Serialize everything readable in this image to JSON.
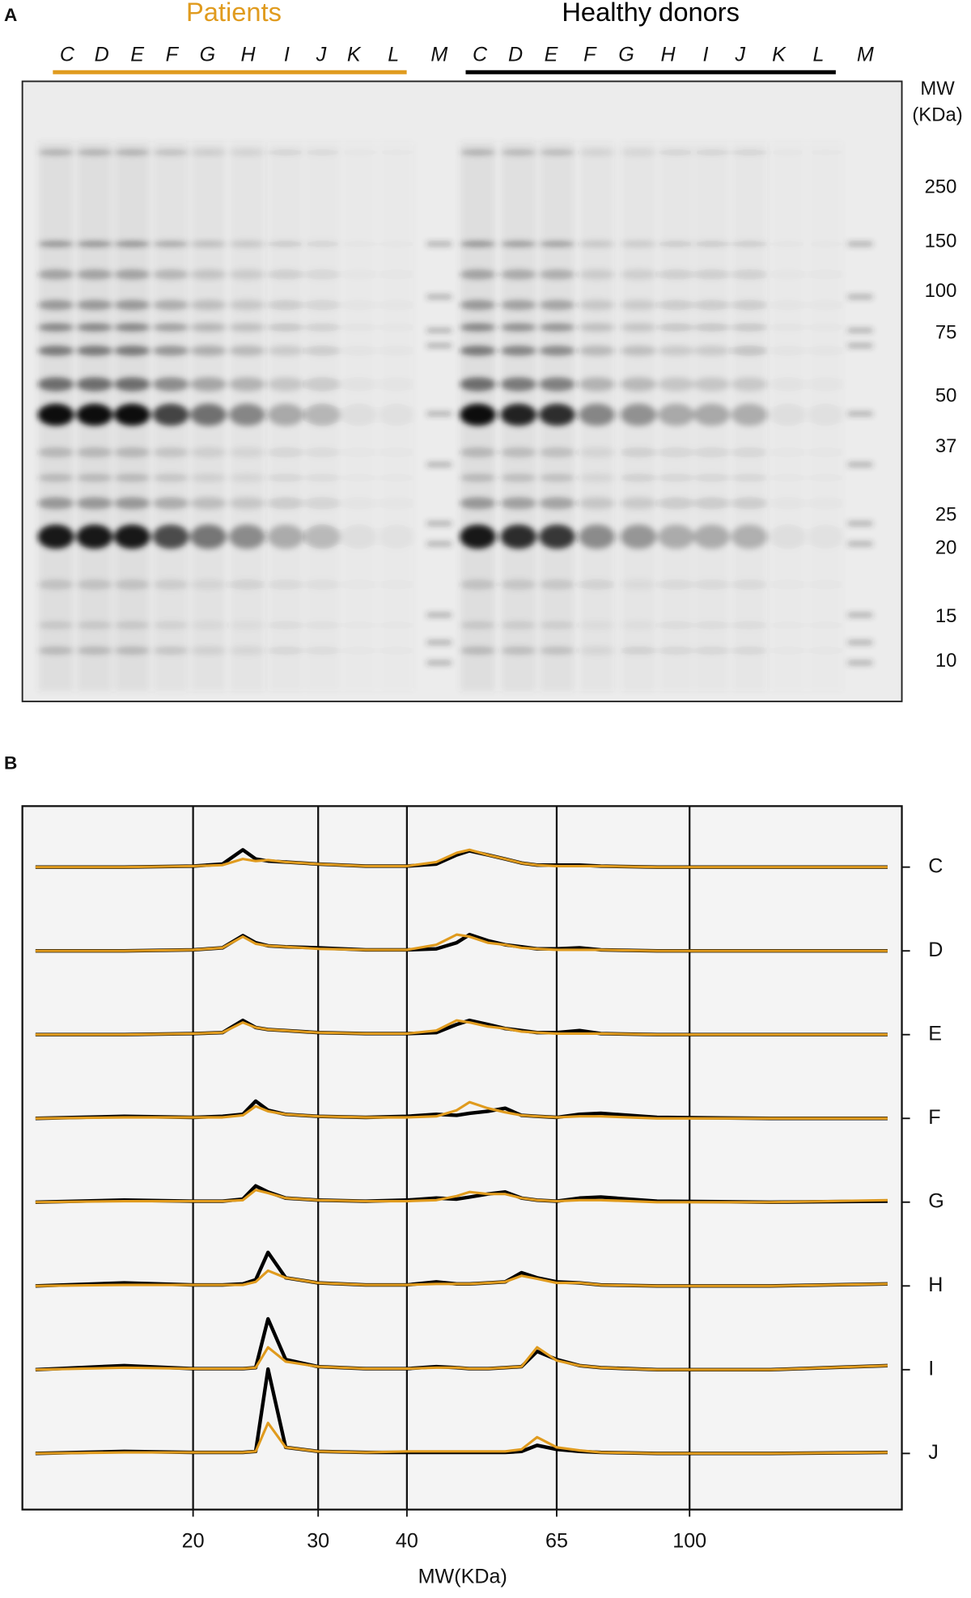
{
  "panel_a": {
    "label": "A",
    "groups": [
      {
        "name": "Patients",
        "color": "#e09b1e"
      },
      {
        "name": "Healthy donors",
        "color": "#000000"
      }
    ],
    "lanes": [
      "C",
      "D",
      "E",
      "F",
      "G",
      "H",
      "I",
      "J",
      "K",
      "L",
      "M",
      "C",
      "D",
      "E",
      "F",
      "G",
      "H",
      "I",
      "J",
      "K",
      "L",
      "M"
    ],
    "mw_title": [
      "MW",
      "(KDa)"
    ],
    "mw_markers": [
      250,
      150,
      100,
      75,
      50,
      37,
      25,
      20,
      15,
      10
    ]
  },
  "chart_data": {
    "type": "line",
    "panel_label": "B",
    "xlabel": "MW(KDa)",
    "xscale": "log",
    "xlim": [
      11.5,
      199
    ],
    "xticks": [
      20,
      30,
      40,
      65,
      100
    ],
    "grid": true,
    "x": [
      12,
      16,
      20,
      22,
      23.5,
      24.5,
      25.5,
      27,
      30,
      35,
      40,
      44,
      47,
      49,
      52,
      55,
      58,
      61,
      65,
      70,
      75,
      90,
      130,
      190
    ],
    "lanes": [
      {
        "name": "C",
        "series": [
          {
            "color": "#000000",
            "values": [
              0,
              0,
              1,
              3,
              17,
              8,
              6,
              5,
              3,
              1,
              1,
              3,
              12,
              16,
              12,
              8,
              4,
              2,
              2,
              2,
              1,
              0,
              0,
              0
            ]
          },
          {
            "color": "#e09b1e",
            "values": [
              0,
              0,
              1,
              2,
              8,
              6,
              7,
              5,
              3,
              1,
              1,
              5,
              14,
              17,
              12,
              8,
              4,
              2,
              1,
              1,
              1,
              0,
              0,
              0
            ]
          }
        ]
      },
      {
        "name": "D",
        "series": [
          {
            "color": "#000000",
            "values": [
              0,
              0,
              1,
              3,
              15,
              8,
              5,
              4,
              3,
              1,
              1,
              2,
              8,
              16,
              10,
              6,
              4,
              2,
              2,
              3,
              1,
              0,
              0,
              0
            ]
          },
          {
            "color": "#e09b1e",
            "values": [
              0,
              0,
              1,
              3,
              14,
              7,
              5,
              4,
              2,
              1,
              1,
              6,
              16,
              14,
              8,
              6,
              3,
              2,
              1,
              1,
              1,
              0,
              0,
              0
            ]
          }
        ]
      },
      {
        "name": "E",
        "series": [
          {
            "color": "#000000",
            "values": [
              0,
              0,
              1,
              2,
              14,
              7,
              5,
              4,
              2,
              1,
              1,
              2,
              10,
              14,
              10,
              6,
              4,
              2,
              2,
              4,
              1,
              0,
              0,
              0
            ]
          },
          {
            "color": "#e09b1e",
            "values": [
              0,
              0,
              1,
              2,
              12,
              7,
              5,
              4,
              2,
              1,
              1,
              4,
              14,
              12,
              8,
              6,
              3,
              2,
              1,
              1,
              1,
              0,
              0,
              0
            ]
          }
        ]
      },
      {
        "name": "F",
        "series": [
          {
            "color": "#000000",
            "values": [
              0,
              2,
              1,
              2,
              4,
              17,
              8,
              4,
              2,
              1,
              2,
              4,
              3,
              5,
              7,
              10,
              3,
              2,
              1,
              4,
              5,
              1,
              0,
              0
            ]
          },
          {
            "color": "#e09b1e",
            "values": [
              0,
              1,
              1,
              1,
              3,
              12,
              7,
              4,
              2,
              1,
              1,
              2,
              8,
              16,
              10,
              6,
              3,
              2,
              1,
              2,
              2,
              0,
              0,
              0
            ]
          }
        ]
      },
      {
        "name": "G",
        "series": [
          {
            "color": "#000000",
            "values": [
              0,
              2,
              1,
              1,
              3,
              16,
              10,
              4,
              2,
              1,
              2,
              4,
              3,
              5,
              8,
              10,
              4,
              2,
              1,
              4,
              5,
              1,
              0,
              1
            ]
          },
          {
            "color": "#e09b1e",
            "values": [
              0,
              1,
              1,
              1,
              2,
              12,
              9,
              4,
              2,
              1,
              1,
              2,
              6,
              10,
              8,
              8,
              4,
              2,
              1,
              2,
              2,
              0,
              0,
              2
            ]
          }
        ]
      },
      {
        "name": "H",
        "series": [
          {
            "color": "#000000",
            "values": [
              0,
              3,
              1,
              1,
              2,
              6,
              33,
              8,
              3,
              1,
              1,
              4,
              2,
              2,
              3,
              4,
              13,
              8,
              4,
              3,
              1,
              0,
              0,
              2
            ]
          },
          {
            "color": "#e09b1e",
            "values": [
              0,
              1,
              1,
              1,
              1,
              4,
              15,
              8,
              3,
              1,
              1,
              2,
              2,
              2,
              3,
              4,
              10,
              7,
              3,
              3,
              1,
              0,
              0,
              2
            ]
          }
        ]
      },
      {
        "name": "I",
        "series": [
          {
            "color": "#000000",
            "values": [
              0,
              4,
              1,
              1,
              1,
              2,
              50,
              10,
              3,
              1,
              1,
              3,
              2,
              1,
              1,
              2,
              3,
              18,
              10,
              4,
              2,
              0,
              0,
              4
            ]
          },
          {
            "color": "#e09b1e",
            "values": [
              0,
              2,
              1,
              1,
              1,
              2,
              22,
              8,
              3,
              1,
              1,
              2,
              2,
              1,
              1,
              2,
              3,
              22,
              9,
              4,
              2,
              0,
              0,
              4
            ]
          }
        ]
      },
      {
        "name": "J",
        "series": [
          {
            "color": "#000000",
            "values": [
              0,
              2,
              1,
              1,
              1,
              2,
              83,
              6,
              2,
              1,
              1,
              1,
              1,
              1,
              1,
              1,
              2,
              8,
              4,
              2,
              1,
              0,
              0,
              1
            ]
          },
          {
            "color": "#e09b1e",
            "values": [
              0,
              1,
              1,
              1,
              1,
              2,
              30,
              6,
              2,
              1,
              2,
              2,
              2,
              2,
              2,
              2,
              4,
              16,
              6,
              3,
              1,
              0,
              0,
              1
            ]
          }
        ]
      }
    ]
  }
}
